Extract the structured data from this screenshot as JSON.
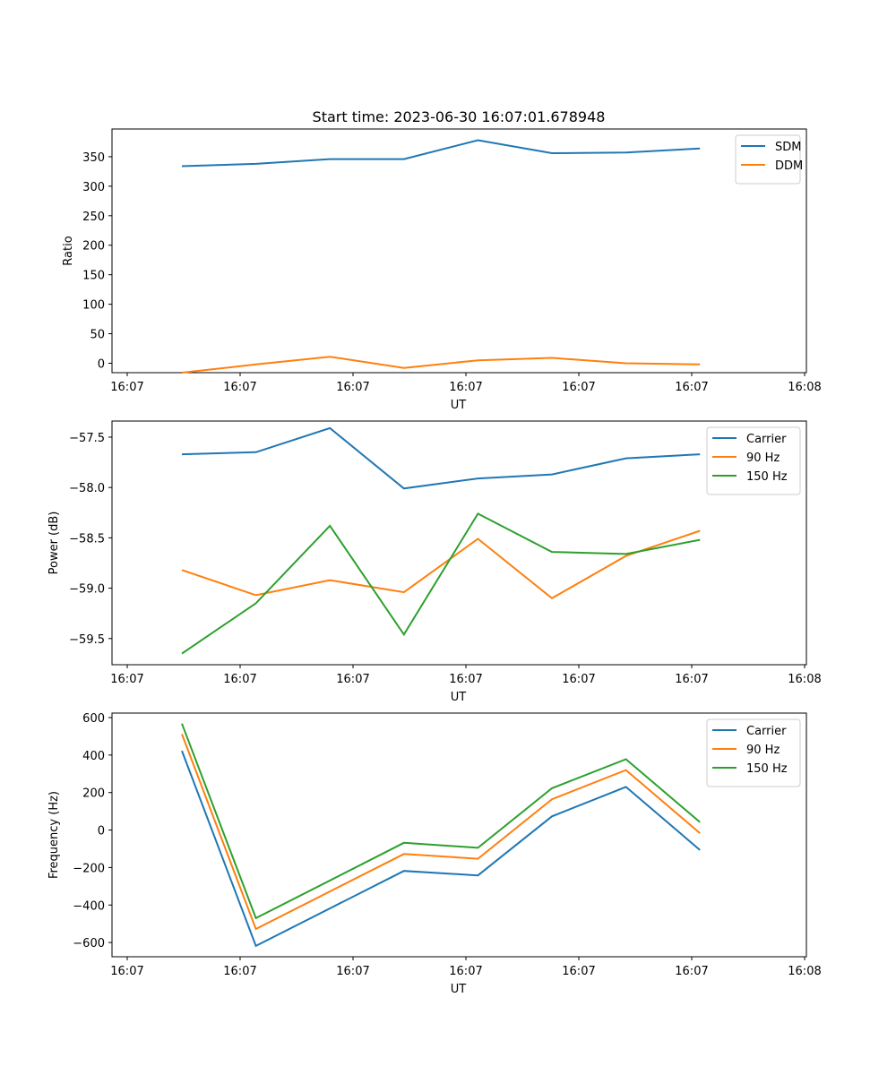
{
  "figure": {
    "title": "Start time: 2023-06-30 16:07:01.678948"
  },
  "chart_data": [
    {
      "type": "line",
      "title": "Start time: 2023-06-30 16:07:01.678948",
      "xlabel": "UT",
      "ylabel": "Ratio",
      "x": [
        0,
        1,
        2,
        3,
        4,
        5,
        6,
        7
      ],
      "x_ticks": [
        "16:07",
        "16:07",
        "16:07",
        "16:07",
        "16:07",
        "16:07",
        "16:08"
      ],
      "y_ticks": [
        0,
        50,
        100,
        150,
        200,
        250,
        300,
        350
      ],
      "ylim": [
        -16,
        397
      ],
      "grid": false,
      "legend_position": "top-right",
      "series": [
        {
          "name": "SDM",
          "color": "#1f77b4",
          "values": [
            334,
            338,
            346,
            346,
            378,
            356,
            357,
            364
          ]
        },
        {
          "name": "DDM",
          "color": "#ff7f0e",
          "values": [
            -16,
            -2,
            11,
            -8,
            5,
            9,
            0,
            -2
          ]
        }
      ]
    },
    {
      "type": "line",
      "xlabel": "UT",
      "ylabel": "Power (dB)",
      "x": [
        0,
        1,
        2,
        3,
        4,
        5,
        6,
        7
      ],
      "x_ticks": [
        "16:07",
        "16:07",
        "16:07",
        "16:07",
        "16:07",
        "16:07",
        "16:08"
      ],
      "y_ticks": [
        -57.5,
        -58.0,
        -58.5,
        -59.0,
        -59.5
      ],
      "y_tick_labels": [
        "−57.5",
        "−58.0",
        "−58.5",
        "−59.0",
        "−59.5"
      ],
      "ylim": [
        -59.76,
        -57.34
      ],
      "grid": false,
      "legend_position": "top-right",
      "series": [
        {
          "name": "Carrier",
          "color": "#1f77b4",
          "values": [
            -57.67,
            -57.65,
            -57.41,
            -58.01,
            -57.91,
            -57.87,
            -57.71,
            -57.67
          ]
        },
        {
          "name": "90 Hz",
          "color": "#ff7f0e",
          "values": [
            -58.82,
            -59.07,
            -58.92,
            -59.04,
            -58.51,
            -59.1,
            -58.68,
            -58.43
          ]
        },
        {
          "name": "150 Hz",
          "color": "#2ca02c",
          "values": [
            -59.65,
            -59.15,
            -58.38,
            -59.46,
            -58.26,
            -58.64,
            -58.66,
            -58.52
          ]
        }
      ]
    },
    {
      "type": "line",
      "xlabel": "UT",
      "ylabel": "Frequency (Hz)",
      "x": [
        0,
        1,
        2,
        3,
        4,
        5,
        6,
        7
      ],
      "x_ticks": [
        "16:07",
        "16:07",
        "16:07",
        "16:07",
        "16:07",
        "16:07",
        "16:08"
      ],
      "y_ticks": [
        600,
        400,
        200,
        0,
        -200,
        -400,
        -600
      ],
      "y_tick_labels": [
        "600",
        "400",
        "200",
        "0",
        "−200",
        "−400",
        "−600"
      ],
      "ylim": [
        -676,
        624
      ],
      "grid": false,
      "legend_position": "top-right",
      "series": [
        {
          "name": "Carrier",
          "color": "#1f77b4",
          "values": [
            423,
            -618,
            null,
            -218,
            -242,
            73,
            230,
            -107
          ]
        },
        {
          "name": "90 Hz",
          "color": "#ff7f0e",
          "values": [
            512,
            -528,
            null,
            -128,
            -153,
            164,
            320,
            -17
          ]
        },
        {
          "name": "150 Hz",
          "color": "#2ca02c",
          "values": [
            568,
            -470,
            null,
            -68,
            -95,
            223,
            378,
            42
          ]
        }
      ]
    }
  ]
}
